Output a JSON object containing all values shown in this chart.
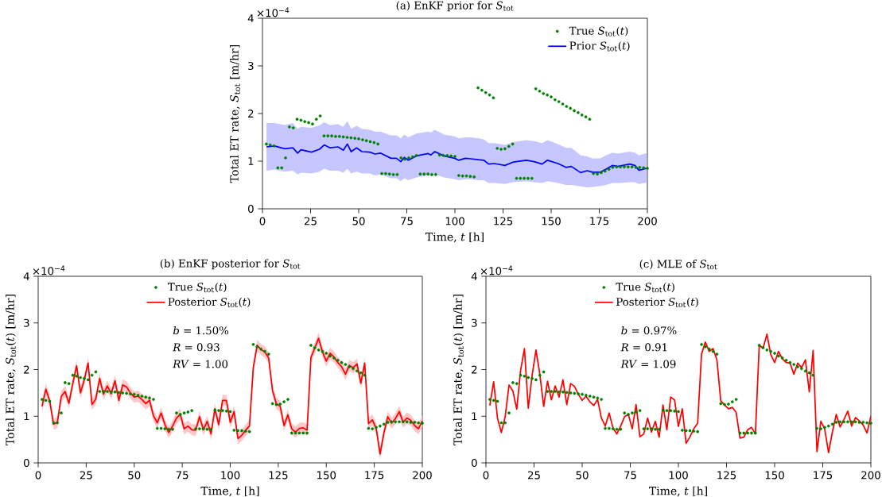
{
  "chart_data": [
    {
      "type": "line",
      "title": "(a) EnKF prior for *S*$_{tot}$",
      "xlabel": "Time, *t* [h]",
      "ylabel": "Total ET rate, *S*$_{tot}$ [m/hr]",
      "annotations": [
        "×10$^{−4}$"
      ],
      "xlim": [
        0,
        200
      ],
      "xticks": [
        0,
        25,
        50,
        75,
        100,
        125,
        150,
        175,
        200
      ],
      "ylim": [
        0,
        4
      ],
      "yticks": [
        0,
        1,
        2,
        3,
        4
      ],
      "legend": "top right",
      "x": [
        2,
        4,
        6,
        8,
        10,
        12,
        14,
        16,
        18,
        20,
        22,
        24,
        26,
        28,
        30,
        32,
        34,
        36,
        38,
        40,
        42,
        44,
        46,
        48,
        50,
        52,
        54,
        56,
        58,
        60,
        62,
        64,
        66,
        68,
        70,
        72,
        74,
        76,
        78,
        80,
        82,
        84,
        86,
        88,
        90,
        92,
        94,
        96,
        98,
        100,
        102,
        104,
        106,
        108,
        110,
        112,
        114,
        116,
        118,
        120,
        122,
        124,
        126,
        128,
        130,
        132,
        134,
        136,
        138,
        140,
        142,
        144,
        146,
        148,
        150,
        152,
        154,
        156,
        158,
        160,
        162,
        164,
        166,
        168,
        170,
        172,
        174,
        176,
        178,
        180,
        182,
        184,
        186,
        188,
        190,
        192,
        194,
        196,
        198,
        200
      ],
      "series": [
        {
          "name": "True *S*$_{tot}$(*t*)",
          "type": "scatter",
          "marker": "circle",
          "color": "#008000",
          "values": [
            1.36,
            1.34,
            1.32,
            0.86,
            0.86,
            1.07,
            1.72,
            1.7,
            1.88,
            1.86,
            1.83,
            1.81,
            1.78,
            1.88,
            1.95,
            1.53,
            1.53,
            1.53,
            1.52,
            1.52,
            1.51,
            1.5,
            1.49,
            1.48,
            1.47,
            1.45,
            1.43,
            1.41,
            1.39,
            1.36,
            0.74,
            0.74,
            0.73,
            0.72,
            0.72,
            1.07,
            1.04,
            1.07,
            1.09,
            1.12,
            0.73,
            0.73,
            0.73,
            0.72,
            0.72,
            1.13,
            1.12,
            1.12,
            1.11,
            1.1,
            0.7,
            0.69,
            0.69,
            0.68,
            0.67,
            2.54,
            2.49,
            2.44,
            2.39,
            2.33,
            1.27,
            1.25,
            1.26,
            1.31,
            1.36,
            0.64,
            0.64,
            0.64,
            0.64,
            0.64,
            2.52,
            2.47,
            2.42,
            2.39,
            2.35,
            2.29,
            2.25,
            2.2,
            2.15,
            2.11,
            2.06,
            2.02,
            1.97,
            1.93,
            1.88,
            0.74,
            0.73,
            0.76,
            0.79,
            0.83,
            0.87,
            0.88,
            0.88,
            0.88,
            0.88,
            0.88,
            0.87,
            0.87,
            0.86,
            0.85
          ]
        },
        {
          "name": "Prior *S*$_{tot}$(*t*)",
          "color": "#0000ff",
          "x": [
            2.1,
            6.2,
            11.7,
            15.8,
            18.3,
            20.0,
            25.5,
            29.6,
            32.1,
            35.1,
            39.3,
            42.0,
            44.1,
            46.1,
            48.9,
            51.7,
            55.8,
            58.5,
            61.3,
            66.8,
            69.6,
            71.9,
            73.7,
            75.8,
            79.9,
            86.1,
            87.5,
            89.5,
            94.4,
            99.9,
            101.9,
            105.4,
            108.1,
            112.3,
            115.0,
            117.5,
            120.5,
            126.0,
            130.2,
            137.1,
            141.2,
            145.3,
            148.1,
            153.6,
            157.7,
            160.5,
            165.3,
            168.7,
            171.5,
            175.6,
            178.4,
            181.8,
            184.6,
            190.8,
            193.5,
            195.6,
            199.7
          ],
          "values": [
            1.3,
            1.32,
            1.26,
            1.28,
            1.17,
            1.24,
            1.19,
            1.25,
            1.34,
            1.28,
            1.3,
            1.23,
            1.36,
            1.2,
            1.28,
            1.2,
            1.19,
            1.15,
            1.17,
            1.06,
            1.06,
            0.99,
            1.08,
            1.02,
            1.11,
            1.16,
            1.13,
            1.2,
            1.11,
            1.06,
            1.02,
            1.06,
            1.05,
            1.03,
            1.02,
            0.94,
            0.95,
            0.91,
            0.98,
            1.02,
            0.99,
            0.94,
            1.02,
            0.95,
            0.87,
            0.89,
            0.76,
            0.8,
            0.77,
            0.77,
            0.83,
            0.91,
            0.89,
            0.94,
            0.91,
            0.81,
            0.85
          ],
          "lower": [
            0.8,
            0.82,
            0.78,
            0.8,
            0.72,
            0.76,
            0.74,
            0.78,
            0.84,
            0.8,
            0.8,
            0.76,
            0.84,
            0.74,
            0.78,
            0.74,
            0.74,
            0.7,
            0.72,
            0.64,
            0.64,
            0.58,
            0.64,
            0.6,
            0.66,
            0.7,
            0.68,
            0.72,
            0.66,
            0.62,
            0.6,
            0.62,
            0.62,
            0.6,
            0.6,
            0.54,
            0.54,
            0.52,
            0.56,
            0.58,
            0.56,
            0.54,
            0.58,
            0.54,
            0.5,
            0.5,
            0.47,
            0.45,
            0.46,
            0.48,
            0.5,
            0.54,
            0.54,
            0.56,
            0.56,
            0.52,
            0.55
          ],
          "upper": [
            1.8,
            1.8,
            1.76,
            1.8,
            1.68,
            1.72,
            1.7,
            1.75,
            1.82,
            1.76,
            1.78,
            1.72,
            1.84,
            1.68,
            1.74,
            1.68,
            1.66,
            1.62,
            1.62,
            1.54,
            1.54,
            1.48,
            1.56,
            1.5,
            1.58,
            1.62,
            1.6,
            1.66,
            1.56,
            1.52,
            1.48,
            1.5,
            1.5,
            1.48,
            1.46,
            1.38,
            1.38,
            1.34,
            1.4,
            1.44,
            1.42,
            1.38,
            1.44,
            1.36,
            1.28,
            1.28,
            1.12,
            1.1,
            1.06,
            1.06,
            1.12,
            1.18,
            1.16,
            1.2,
            1.18,
            1.12,
            1.17
          ]
        }
      ]
    },
    {
      "type": "line",
      "title": "(b) EnKF posterior for *S*$_{tot}$",
      "xlabel": "Time, *t* [h]",
      "ylabel": "Total ET rate, *S*$_{tot}$(*t*) [m/hr]",
      "annotations": [
        "×10$^{−4}$",
        "*b* = 1.50%",
        "*R* = 0.93",
        "*RV* = 1.00"
      ],
      "xlim": [
        0,
        200
      ],
      "xticks": [
        0,
        25,
        50,
        75,
        100,
        125,
        150,
        175,
        200
      ],
      "ylim": [
        0,
        4
      ],
      "yticks": [
        0,
        1,
        2,
        3,
        4
      ],
      "legend": "top",
      "x": [
        2,
        4,
        6,
        8,
        10,
        12,
        14,
        16,
        18,
        20,
        22,
        24,
        26,
        28,
        30,
        32,
        34,
        36,
        38,
        40,
        42,
        44,
        46,
        48,
        50,
        52,
        54,
        56,
        58,
        60,
        62,
        64,
        66,
        68,
        70,
        72,
        74,
        76,
        78,
        80,
        82,
        84,
        86,
        88,
        90,
        92,
        94,
        96,
        98,
        100,
        102,
        104,
        106,
        108,
        110,
        112,
        114,
        116,
        118,
        120,
        122,
        124,
        126,
        128,
        130,
        132,
        134,
        136,
        138,
        140,
        142,
        144,
        146,
        148,
        150,
        152,
        154,
        156,
        158,
        160,
        162,
        164,
        166,
        168,
        170,
        172,
        174,
        176,
        178,
        180,
        182,
        184,
        186,
        188,
        190,
        192,
        194,
        196,
        198,
        200
      ],
      "series": [
        {
          "name": "True *S*$_{tot}$(*t*)",
          "type": "scatter",
          "marker": "circle",
          "color": "#008000",
          "values": [
            1.36,
            1.34,
            1.32,
            0.86,
            0.86,
            1.07,
            1.72,
            1.7,
            1.88,
            1.86,
            1.83,
            1.81,
            1.78,
            1.88,
            1.95,
            1.53,
            1.53,
            1.53,
            1.52,
            1.52,
            1.51,
            1.5,
            1.49,
            1.48,
            1.47,
            1.45,
            1.43,
            1.41,
            1.39,
            1.36,
            0.74,
            0.74,
            0.73,
            0.72,
            0.72,
            1.07,
            1.04,
            1.07,
            1.09,
            1.12,
            0.73,
            0.73,
            0.73,
            0.72,
            0.72,
            1.13,
            1.12,
            1.12,
            1.11,
            1.1,
            0.7,
            0.69,
            0.69,
            0.68,
            0.67,
            2.54,
            2.49,
            2.44,
            2.39,
            2.33,
            1.27,
            1.25,
            1.26,
            1.31,
            1.36,
            0.64,
            0.64,
            0.64,
            0.64,
            0.64,
            2.52,
            2.47,
            2.42,
            2.39,
            2.35,
            2.29,
            2.25,
            2.2,
            2.15,
            2.11,
            2.06,
            2.02,
            1.97,
            1.93,
            1.88,
            0.74,
            0.73,
            0.76,
            0.79,
            0.83,
            0.87,
            0.88,
            0.88,
            0.88,
            0.88,
            0.88,
            0.87,
            0.87,
            0.86,
            0.85
          ]
        },
        {
          "name": "Posterior *S*$_{tot}$(*t*)",
          "color": "#ff0000",
          "values": [
            1.21,
            1.58,
            1.33,
            0.83,
            0.87,
            1.42,
            1.53,
            1.28,
            1.7,
            2.08,
            1.5,
            1.78,
            2.14,
            1.25,
            1.37,
            1.81,
            1.47,
            1.65,
            1.48,
            1.76,
            1.34,
            1.67,
            1.63,
            1.5,
            1.41,
            1.43,
            1.36,
            1.27,
            1.34,
            1.01,
            0.86,
            1.07,
            0.82,
            0.65,
            0.79,
            0.96,
            1.04,
            0.73,
            0.79,
            0.71,
            0.7,
            0.99,
            0.71,
            0.89,
            0.62,
            1.16,
            0.82,
            1.34,
            1.34,
            0.87,
            1.1,
            0.52,
            0.59,
            0.7,
            0.79,
            2.04,
            2.52,
            2.43,
            2.38,
            2.25,
            1.55,
            1.27,
            1.21,
            0.8,
            1.03,
            0.73,
            0.66,
            0.74,
            0.75,
            0.7,
            2.26,
            2.46,
            2.67,
            2.38,
            2.18,
            2.35,
            2.27,
            2.15,
            2.06,
            1.9,
            2.09,
            2.04,
            2.12,
            1.71,
            2.14,
            0.84,
            0.92,
            0.74,
            0.19,
            0.64,
            0.99,
            0.85,
            0.95,
            1.1,
            0.87,
            0.96,
            0.91,
            0.8,
            0.73,
            0.9
          ],
          "lower": [
            1.09,
            1.46,
            1.21,
            0.71,
            0.75,
            1.3,
            1.41,
            1.16,
            1.58,
            1.96,
            1.38,
            1.66,
            2.02,
            1.13,
            1.25,
            1.69,
            1.35,
            1.53,
            1.36,
            1.64,
            1.22,
            1.55,
            1.51,
            1.38,
            1.29,
            1.31,
            1.24,
            1.15,
            1.22,
            0.89,
            0.74,
            0.95,
            0.7,
            0.53,
            0.67,
            0.84,
            0.92,
            0.61,
            0.67,
            0.59,
            0.58,
            0.87,
            0.59,
            0.77,
            0.5,
            1.04,
            0.7,
            1.22,
            1.22,
            0.75,
            0.98,
            0.4,
            0.47,
            0.58,
            0.67,
            1.92,
            2.4,
            2.31,
            2.26,
            2.13,
            1.43,
            1.15,
            1.09,
            0.68,
            0.91,
            0.61,
            0.54,
            0.62,
            0.63,
            0.58,
            2.14,
            2.34,
            2.55,
            2.26,
            2.06,
            2.23,
            2.15,
            2.03,
            1.94,
            1.78,
            1.97,
            1.92,
            2.0,
            1.59,
            2.02,
            0.72,
            0.8,
            0.62,
            0.07,
            0.52,
            0.87,
            0.73,
            0.83,
            0.98,
            0.75,
            0.84,
            0.79,
            0.68,
            0.61,
            0.78
          ],
          "upper": [
            1.33,
            1.7,
            1.45,
            0.95,
            0.99,
            1.54,
            1.65,
            1.4,
            1.82,
            2.2,
            1.62,
            1.9,
            2.26,
            1.37,
            1.49,
            1.93,
            1.59,
            1.77,
            1.6,
            1.88,
            1.46,
            1.79,
            1.75,
            1.62,
            1.53,
            1.55,
            1.48,
            1.39,
            1.46,
            1.13,
            0.98,
            1.19,
            0.94,
            0.77,
            0.91,
            1.08,
            1.16,
            0.85,
            0.91,
            0.83,
            0.82,
            1.11,
            0.83,
            1.01,
            0.74,
            1.28,
            0.94,
            1.46,
            1.46,
            0.99,
            1.22,
            0.64,
            0.71,
            0.82,
            0.91,
            2.16,
            2.64,
            2.55,
            2.5,
            2.37,
            1.67,
            1.39,
            1.33,
            0.92,
            1.15,
            0.85,
            0.78,
            0.86,
            0.87,
            0.82,
            2.38,
            2.58,
            2.79,
            2.5,
            2.3,
            2.47,
            2.39,
            2.27,
            2.18,
            2.02,
            2.21,
            2.16,
            2.24,
            1.83,
            2.26,
            0.96,
            1.04,
            0.86,
            0.31,
            0.76,
            1.11,
            0.97,
            1.07,
            1.22,
            0.99,
            1.08,
            1.03,
            0.92,
            0.85,
            1.02
          ]
        }
      ]
    },
    {
      "type": "line",
      "title": "(c) MLE of *S*$_{tot}$",
      "xlabel": "Time, *t* [h]",
      "ylabel": "Total ET rate, *S*$_{tot}$(*t*) [m/hr]",
      "annotations": [
        "×10$^{−4}$",
        "*b* = 0.97%",
        "*R* = 0.91",
        "*RV* = 1.09"
      ],
      "xlim": [
        0,
        200
      ],
      "xticks": [
        0,
        25,
        50,
        75,
        100,
        125,
        150,
        175,
        200
      ],
      "ylim": [
        0,
        4
      ],
      "yticks": [
        0,
        1,
        2,
        3,
        4
      ],
      "legend": "top",
      "x": [
        2,
        4,
        6,
        8,
        10,
        12,
        14,
        16,
        18,
        20,
        22,
        24,
        26,
        28,
        30,
        32,
        34,
        36,
        38,
        40,
        42,
        44,
        46,
        48,
        50,
        52,
        54,
        56,
        58,
        60,
        62,
        64,
        66,
        68,
        70,
        72,
        74,
        76,
        78,
        80,
        82,
        84,
        86,
        88,
        90,
        92,
        94,
        96,
        98,
        100,
        102,
        104,
        106,
        108,
        110,
        112,
        114,
        116,
        118,
        120,
        122,
        124,
        126,
        128,
        130,
        132,
        134,
        136,
        138,
        140,
        142,
        144,
        146,
        148,
        150,
        152,
        154,
        156,
        158,
        160,
        162,
        164,
        166,
        168,
        170,
        172,
        174,
        176,
        178,
        180,
        182,
        184,
        186,
        188,
        190,
        192,
        194,
        196,
        198,
        200
      ],
      "series": [
        {
          "name": "True *S*$_{tot}$(*t*)",
          "type": "scatter",
          "marker": "circle",
          "color": "#008000",
          "values": [
            1.36,
            1.34,
            1.32,
            0.86,
            0.86,
            1.07,
            1.72,
            1.7,
            1.88,
            1.86,
            1.83,
            1.81,
            1.78,
            1.88,
            1.95,
            1.53,
            1.53,
            1.53,
            1.52,
            1.52,
            1.51,
            1.5,
            1.49,
            1.48,
            1.47,
            1.45,
            1.43,
            1.41,
            1.39,
            1.36,
            0.74,
            0.74,
            0.73,
            0.72,
            0.72,
            1.07,
            1.04,
            1.07,
            1.09,
            1.12,
            0.73,
            0.73,
            0.73,
            0.72,
            0.72,
            1.13,
            1.12,
            1.12,
            1.11,
            1.1,
            0.7,
            0.69,
            0.69,
            0.68,
            0.67,
            2.54,
            2.49,
            2.44,
            2.39,
            2.33,
            1.27,
            1.25,
            1.26,
            1.31,
            1.36,
            0.64,
            0.64,
            0.64,
            0.64,
            0.64,
            2.52,
            2.47,
            2.42,
            2.39,
            2.35,
            2.29,
            2.25,
            2.2,
            2.15,
            2.11,
            2.06,
            2.02,
            1.97,
            1.93,
            1.88,
            0.74,
            0.73,
            0.76,
            0.79,
            0.83,
            0.87,
            0.88,
            0.88,
            0.88,
            0.88,
            0.88,
            0.87,
            0.87,
            0.86,
            0.85
          ]
        },
        {
          "name": "Posterior *S*$_{tot}$(*t*)",
          "color": "#ff0000",
          "values": [
            1.23,
            1.74,
            0.96,
            0.65,
            0.99,
            1.67,
            1.54,
            1.15,
            1.98,
            2.45,
            1.17,
            1.88,
            2.42,
            1.9,
            1.21,
            1.75,
            1.35,
            1.65,
            1.41,
            1.78,
            1.25,
            1.7,
            1.64,
            1.47,
            1.34,
            1.43,
            1.31,
            1.23,
            1.36,
            0.96,
            0.79,
            1.07,
            0.75,
            0.62,
            0.79,
            0.99,
            1.04,
            0.73,
            1.25,
            0.56,
            0.62,
            0.96,
            0.66,
            0.89,
            0.55,
            1.24,
            0.71,
            1.41,
            1.35,
            0.78,
            1.16,
            0.42,
            0.56,
            0.73,
            0.85,
            2.33,
            2.59,
            2.39,
            2.45,
            2.21,
            1.33,
            1.24,
            1.16,
            1.19,
            1.08,
            0.53,
            0.55,
            0.71,
            0.76,
            0.62,
            2.52,
            2.46,
            2.76,
            2.32,
            2.15,
            2.39,
            2.23,
            2.15,
            2.14,
            1.9,
            2.14,
            2.04,
            2.21,
            1.52,
            2.41,
            0.24,
            0.89,
            0.73,
            0.22,
            0.66,
            1.04,
            0.77,
            0.93,
            1.11,
            0.79,
            0.97,
            0.9,
            0.81,
            0.64,
            1.0
          ]
        }
      ]
    }
  ]
}
